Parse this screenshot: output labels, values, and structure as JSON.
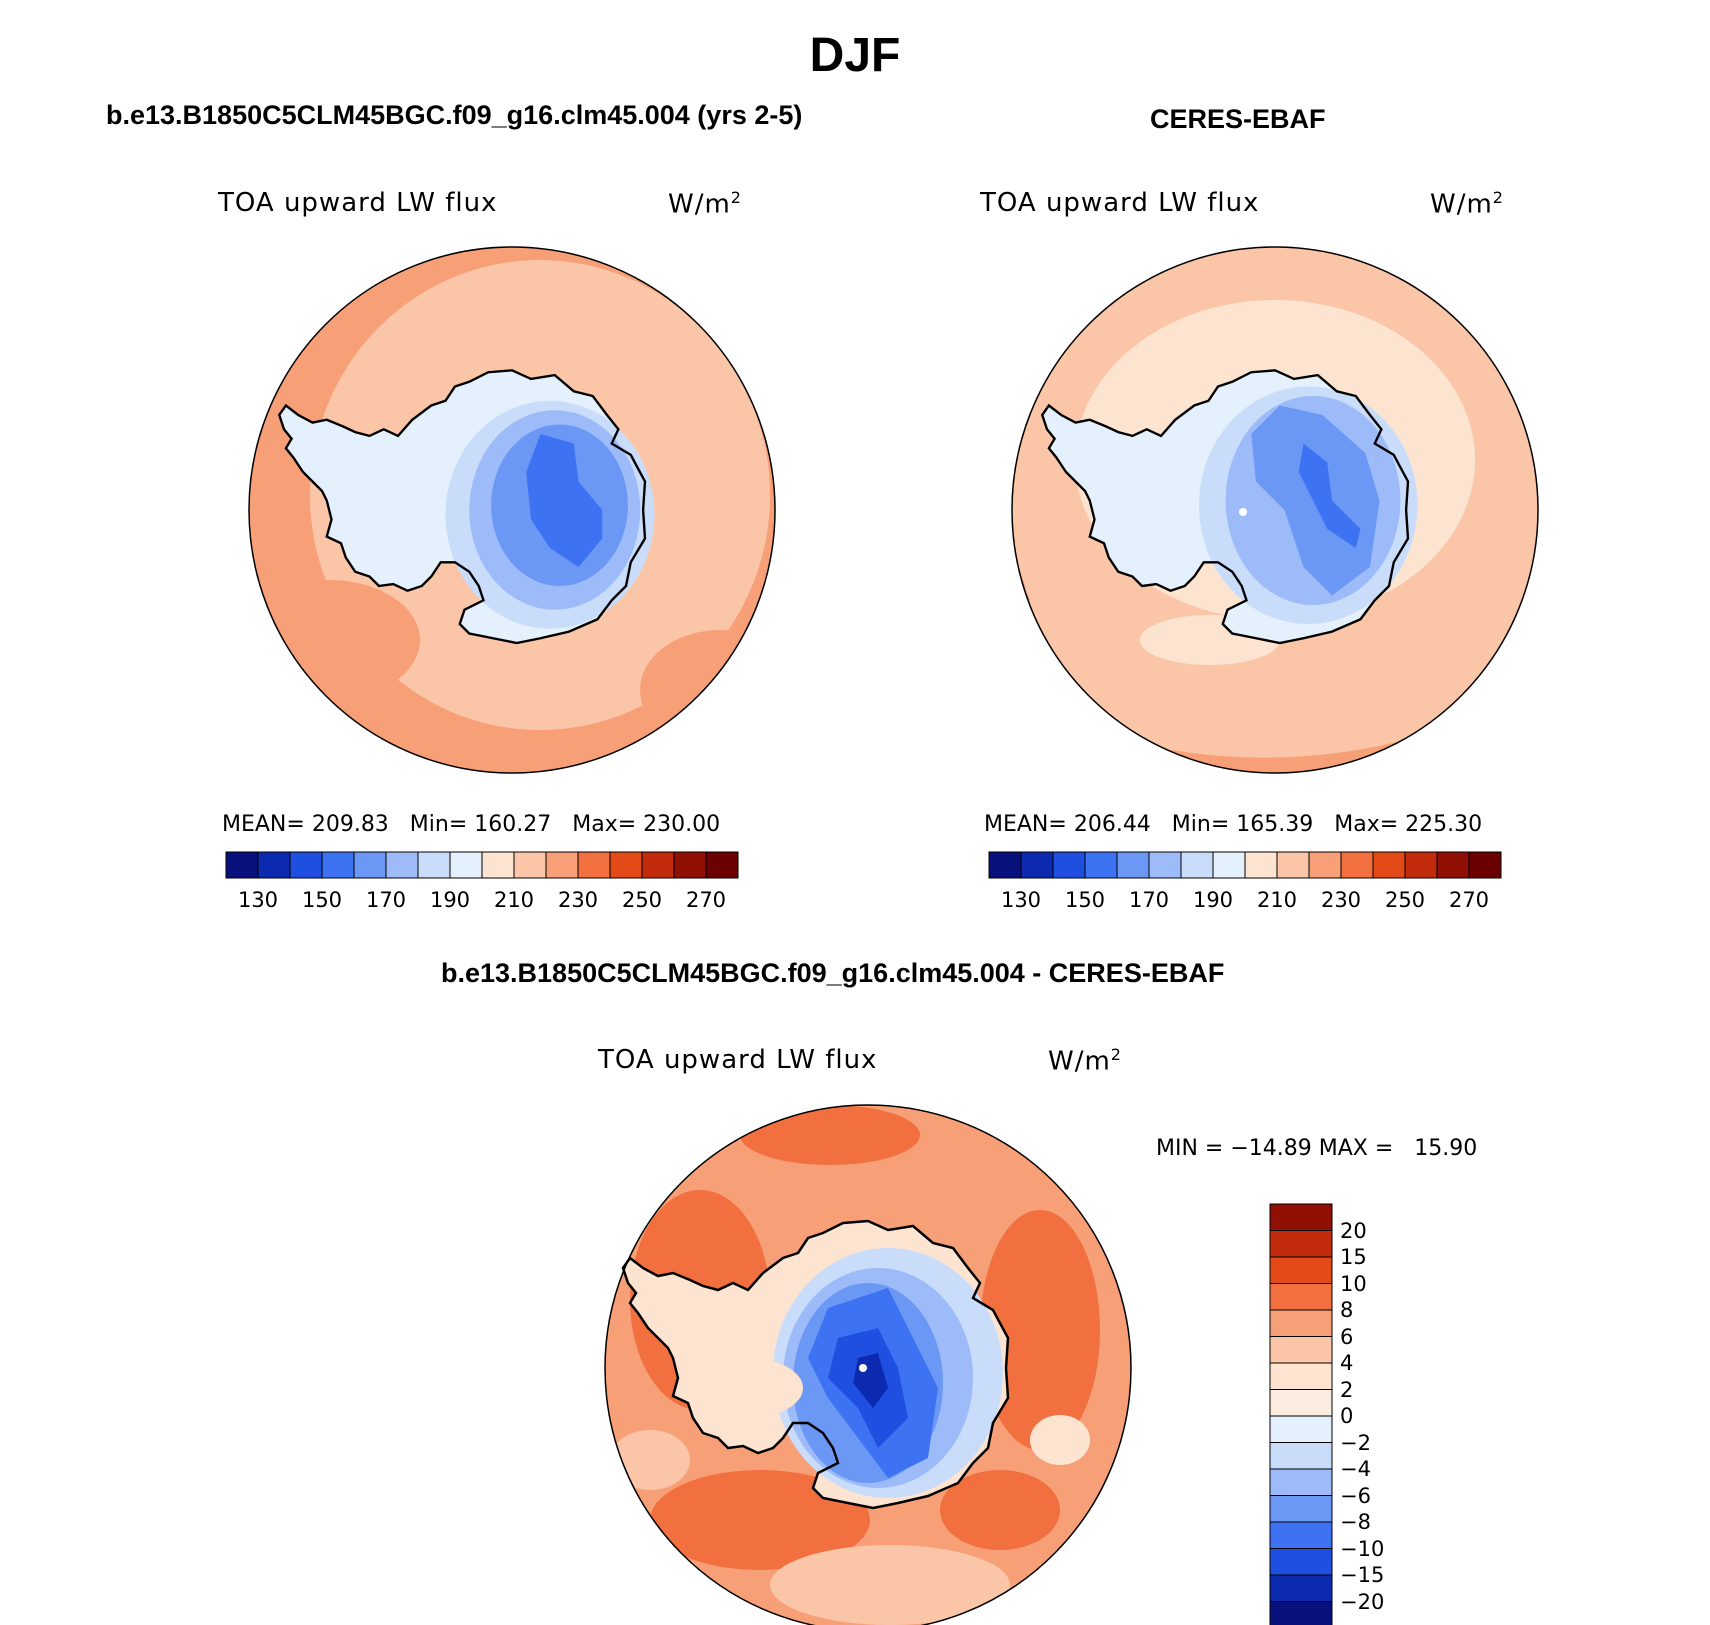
{
  "figure": {
    "title": "DJF"
  },
  "panels": [
    {
      "id": "model",
      "case_title": "b.e13.B1850C5CLM45BGC.f09_g16.clm45.004 (yrs 2-5)",
      "variable": "TOA upward LW flux",
      "units_base": "W/m",
      "units_exp": "2",
      "stats": {
        "mean_label": "MEAN=",
        "mean": "209.83",
        "min_label": "Min=",
        "min": "160.27",
        "max_label": "Max=",
        "max": "230.00"
      }
    },
    {
      "id": "obs",
      "case_title": "CERES-EBAF",
      "variable": "TOA upward LW flux",
      "units_base": "W/m",
      "units_exp": "2",
      "stats": {
        "mean_label": "MEAN=",
        "mean": "206.44",
        "min_label": "Min=",
        "min": "165.39",
        "max_label": "Max=",
        "max": "225.30"
      }
    },
    {
      "id": "diff",
      "case_title": "b.e13.B1850C5CLM45BGC.f09_g16.clm45.004 - CERES-EBAF",
      "variable": "TOA upward LW flux",
      "units_base": "W/m",
      "units_exp": "2",
      "stats_line": "MIN = −14.89 MAX =   15.90"
    }
  ],
  "chart_data": [
    {
      "type": "heatmap",
      "projection": "south-polar-stereographic",
      "title": "b.e13.B1850C5CLM45BGC.f09_g16.clm45.004 (yrs 2-5)",
      "variable": "TOA upward LW flux",
      "units": "W/m2",
      "mean": 209.83,
      "min": 160.27,
      "max": 230.0,
      "colorbar_levels": [
        130,
        140,
        150,
        160,
        170,
        180,
        190,
        200,
        210,
        220,
        230,
        240,
        250,
        260,
        270
      ],
      "colorbar_tick_labels": [
        "130",
        "150",
        "170",
        "190",
        "210",
        "230",
        "250",
        "270"
      ],
      "colors": [
        "#08107c",
        "#0c2ab0",
        "#1f4fe0",
        "#3d72f2",
        "#6b97f5",
        "#9cbbf8",
        "#c9ddfb",
        "#e4f0fc",
        "#fde4d0",
        "#fbc6a8",
        "#f7a077",
        "#f26f40",
        "#e44a18",
        "#c22c0c",
        "#901006",
        "#6a0000"
      ]
    },
    {
      "type": "heatmap",
      "projection": "south-polar-stereographic",
      "title": "CERES-EBAF",
      "variable": "TOA upward LW flux",
      "units": "W/m2",
      "mean": 206.44,
      "min": 165.39,
      "max": 225.3,
      "colorbar_levels": [
        130,
        140,
        150,
        160,
        170,
        180,
        190,
        200,
        210,
        220,
        230,
        240,
        250,
        260,
        270
      ],
      "colorbar_tick_labels": [
        "130",
        "150",
        "170",
        "190",
        "210",
        "230",
        "250",
        "270"
      ],
      "colors": [
        "#08107c",
        "#0c2ab0",
        "#1f4fe0",
        "#3d72f2",
        "#6b97f5",
        "#9cbbf8",
        "#c9ddfb",
        "#e4f0fc",
        "#fde4d0",
        "#fbc6a8",
        "#f7a077",
        "#f26f40",
        "#e44a18",
        "#c22c0c",
        "#901006",
        "#6a0000"
      ]
    },
    {
      "type": "heatmap",
      "projection": "south-polar-stereographic",
      "title": "b.e13.B1850C5CLM45BGC.f09_g16.clm45.004 - CERES-EBAF",
      "variable": "TOA upward LW flux",
      "units": "W/m2",
      "min": -14.89,
      "max": 15.9,
      "colorbar_tick_labels": [
        "20",
        "15",
        "10",
        "8",
        "6",
        "4",
        "2",
        "0",
        "−2",
        "−4",
        "−6",
        "−8",
        "−10",
        "−15",
        "−20"
      ],
      "colors": [
        "#901006",
        "#c22c0c",
        "#e44a18",
        "#f26f40",
        "#f7a077",
        "#fbc6a8",
        "#fde4d0",
        "#fbeee0",
        "#e4f0fc",
        "#c9ddfb",
        "#9cbbf8",
        "#6b97f5",
        "#3d72f2",
        "#1f4fe0",
        "#0c2ab0",
        "#08107c"
      ]
    }
  ]
}
